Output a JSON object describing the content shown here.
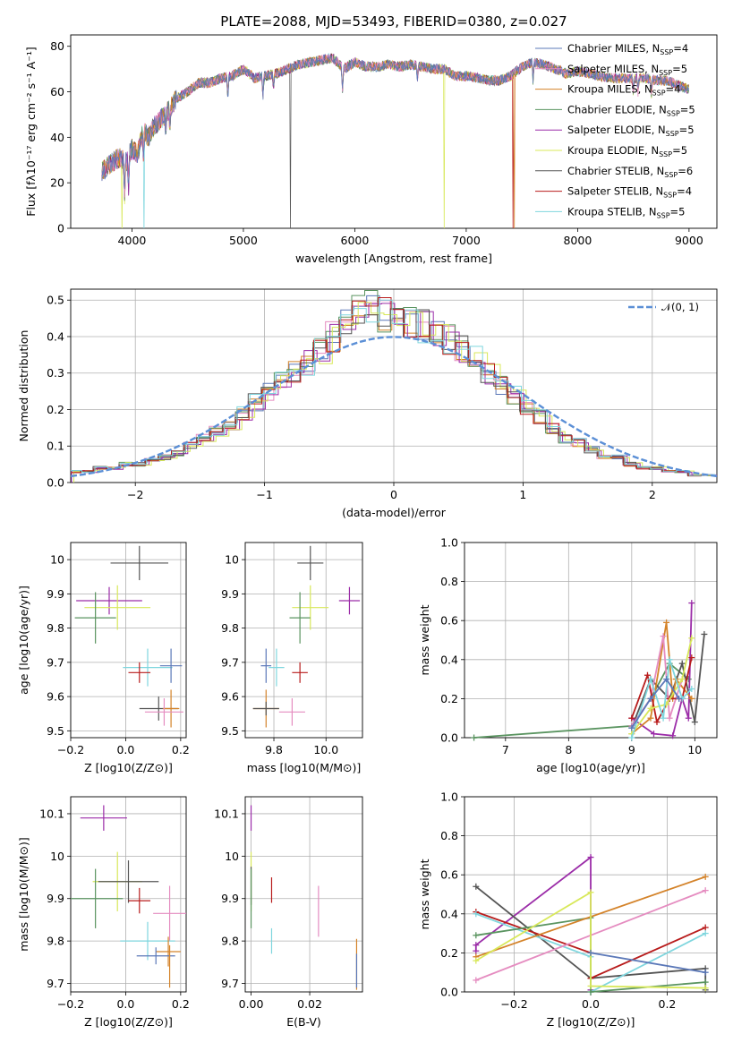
{
  "figure_title": "PLATE=2088, MJD=53493, FIBERID=0380, z=0.027",
  "colors": {
    "Chabrier MILES": "#5b78b8",
    "Salpeter MILES": "#e58cc0",
    "Kroupa MILES": "#d4832a",
    "Chabrier ELODIE": "#5a9460",
    "Salpeter ELODIE": "#9b2ca8",
    "Kroupa ELODIE": "#d8e85a",
    "Chabrier STELIB": "#555555",
    "Salpeter STELIB": "#b81c1c",
    "Kroupa STELIB": "#7fd6de",
    "normal_curve": "#5b8fd6"
  },
  "models": [
    "Chabrier MILES",
    "Salpeter MILES",
    "Kroupa MILES",
    "Chabrier ELODIE",
    "Salpeter ELODIE",
    "Kroupa ELODIE",
    "Chabrier STELIB",
    "Salpeter STELIB",
    "Kroupa STELIB"
  ],
  "legend_spectrum": [
    {
      "model": "Chabrier MILES",
      "text": "Chabrier MILES, N",
      "n": "4"
    },
    {
      "model": "Salpeter MILES",
      "text": "Salpeter MILES, N",
      "n": "5"
    },
    {
      "model": "Kroupa MILES",
      "text": "Kroupa MILES, N",
      "n": "4"
    },
    {
      "model": "Chabrier ELODIE",
      "text": "Chabrier ELODIE, N",
      "n": "5"
    },
    {
      "model": "Salpeter ELODIE",
      "text": "Salpeter ELODIE, N",
      "n": "5"
    },
    {
      "model": "Kroupa ELODIE",
      "text": "Kroupa ELODIE, N",
      "n": "5"
    },
    {
      "model": "Chabrier STELIB",
      "text": "Chabrier STELIB, N",
      "n": "6"
    },
    {
      "model": "Salpeter STELIB",
      "text": "Salpeter STELIB, N",
      "n": "4"
    },
    {
      "model": "Kroupa STELIB",
      "text": "Kroupa STELIB, N",
      "n": "5"
    }
  ],
  "legend_ssp_sub": "SSP",
  "legend_normal": "𝒩(0, 1)",
  "chart_data": [
    {
      "id": "spectrum",
      "type": "line",
      "xlabel": "wavelength [Angstrom, rest frame]",
      "ylabel": "Flux [fλ10⁻¹⁷ erg cm⁻² s⁻¹ A⁻¹]",
      "xlim": [
        3450,
        9250
      ],
      "ylim": [
        0,
        85
      ],
      "xticks": [
        4000,
        5000,
        6000,
        7000,
        8000,
        9000
      ],
      "yticks": [
        0,
        20,
        40,
        60,
        80
      ],
      "x": [
        3730,
        3800,
        3850,
        3900,
        3950,
        4000,
        4050,
        4100,
        4150,
        4200,
        4300,
        4400,
        4500,
        4600,
        4700,
        4800,
        4900,
        5000,
        5100,
        5200,
        5300,
        5400,
        5500,
        5600,
        5700,
        5800,
        5900,
        6000,
        6100,
        6200,
        6300,
        6400,
        6500,
        6600,
        6700,
        6800,
        6900,
        7000,
        7100,
        7200,
        7300,
        7400,
        7500,
        7600,
        7700,
        7800,
        7900,
        8000,
        8100,
        8200,
        8300,
        8400,
        8500,
        8600,
        8700,
        8800,
        8900,
        9000
      ],
      "y": [
        25,
        28,
        30,
        31,
        29,
        35,
        33,
        43,
        40,
        45,
        50,
        57,
        60,
        64,
        64,
        66,
        67,
        70,
        66,
        67,
        68,
        70,
        72,
        73,
        74,
        75,
        70,
        73,
        71,
        71,
        72,
        71,
        72,
        71,
        70,
        70,
        67,
        67,
        66,
        65,
        65,
        67,
        71,
        73,
        72,
        70,
        68,
        69,
        68,
        67,
        66,
        66,
        66,
        66,
        65,
        65,
        63,
        61
      ],
      "dropouts": [
        {
          "model": "Kroupa ELODIE",
          "x": 3910
        },
        {
          "model": "Kroupa STELIB",
          "x": 4110
        },
        {
          "model": "Chabrier STELIB",
          "x": 5420
        },
        {
          "model": "Kroupa ELODIE",
          "x": 6800
        },
        {
          "model": "Kroupa MILES",
          "x": 7430
        },
        {
          "model": "Salpeter STELIB",
          "x": 7420
        }
      ]
    },
    {
      "id": "residuals",
      "type": "histogram",
      "xlabel": "(data-model)/error",
      "ylabel": "Normed distribution",
      "xlim": [
        -2.5,
        2.5
      ],
      "ylim": [
        0,
        0.53
      ],
      "xticks": [
        -2,
        -1,
        0,
        1,
        2
      ],
      "yticks": [
        0.0,
        0.1,
        0.2,
        0.3,
        0.4,
        0.5
      ],
      "xtick_labels": [
        "−2",
        "−1",
        "0",
        "1",
        "2"
      ],
      "yticks_labels": [
        "0.0",
        "0.1",
        "0.2",
        "0.3",
        "0.4",
        "0.5"
      ],
      "bin_width": 0.1,
      "bin_start": -2.5,
      "mean_density": [
        0.03,
        0.03,
        0.04,
        0.04,
        0.05,
        0.05,
        0.06,
        0.07,
        0.08,
        0.1,
        0.12,
        0.14,
        0.16,
        0.19,
        0.22,
        0.25,
        0.28,
        0.3,
        0.33,
        0.36,
        0.4,
        0.44,
        0.47,
        0.48,
        0.46,
        0.47,
        0.44,
        0.43,
        0.42,
        0.39,
        0.37,
        0.34,
        0.3,
        0.27,
        0.24,
        0.21,
        0.18,
        0.15,
        0.12,
        0.11,
        0.09,
        0.07,
        0.07,
        0.05,
        0.04,
        0.04,
        0.03,
        0.03,
        0.02,
        0.02
      ],
      "normal": {
        "label": "N(0,1)",
        "mean": 0,
        "sigma": 1
      }
    },
    {
      "id": "age_vs_Z",
      "type": "scatter_errorbar",
      "xlabel": "Z [log10(Z/Z⊙)]",
      "ylabel": "age  [log10(age/yr)]",
      "xlim": [
        -0.2,
        0.22
      ],
      "ylim": [
        9.48,
        10.05
      ],
      "xticks": [
        -0.2,
        0.0,
        0.2
      ],
      "xtick_labels": [
        "−0.2",
        "0.0",
        "0.2"
      ],
      "yticks": [
        9.5,
        9.6,
        9.7,
        9.8,
        9.9,
        10.0
      ],
      "points": [
        {
          "model": "Chabrier STELIB",
          "x": 0.05,
          "y": 9.99,
          "xerr": 0.105,
          "yerr": 0.05
        },
        {
          "model": "Salpeter ELODIE",
          "x": -0.06,
          "y": 9.88,
          "xerr": 0.12,
          "yerr": 0.04
        },
        {
          "model": "Kroupa ELODIE",
          "x": -0.03,
          "y": 9.86,
          "xerr": 0.12,
          "yerr": 0.065
        },
        {
          "model": "Chabrier ELODIE",
          "x": -0.11,
          "y": 9.83,
          "xerr": 0.075,
          "yerr": 0.075
        },
        {
          "model": "Kroupa STELIB",
          "x": 0.08,
          "y": 9.685,
          "xerr": 0.09,
          "yerr": 0.055
        },
        {
          "model": "Chabrier MILES",
          "x": 0.165,
          "y": 9.69,
          "xerr": 0.04,
          "yerr": 0.05
        },
        {
          "model": "Salpeter STELIB",
          "x": 0.05,
          "y": 9.67,
          "xerr": 0.04,
          "yerr": 0.03
        },
        {
          "model": "Chabrier STELIB",
          "x": 0.12,
          "y": 9.565,
          "xerr": 0.07,
          "yerr": 0.035
        },
        {
          "model": "Kroupa MILES",
          "x": 0.165,
          "y": 9.565,
          "xerr": 0.03,
          "yerr": 0.055
        },
        {
          "model": "Salpeter MILES",
          "x": 0.14,
          "y": 9.555,
          "xerr": 0.07,
          "yerr": 0.04
        }
      ]
    },
    {
      "id": "age_vs_mass",
      "type": "scatter_errorbar",
      "xlabel": "mass [log10(M/M⊙)]",
      "ylabel": "",
      "xlim": [
        9.69,
        10.14
      ],
      "ylim": [
        9.48,
        10.05
      ],
      "xticks": [
        9.8,
        10.0
      ],
      "xtick_labels": [
        "9.8",
        "10.0"
      ],
      "yticks": [
        9.5,
        9.6,
        9.7,
        9.8,
        9.9,
        10.0
      ],
      "points": [
        {
          "model": "Chabrier STELIB",
          "x": 9.94,
          "y": 9.99,
          "xerr": 0.05,
          "yerr": 0.05
        },
        {
          "model": "Salpeter ELODIE",
          "x": 10.09,
          "y": 9.88,
          "xerr": 0.04,
          "yerr": 0.04
        },
        {
          "model": "Kroupa ELODIE",
          "x": 9.94,
          "y": 9.86,
          "xerr": 0.07,
          "yerr": 0.065
        },
        {
          "model": "Chabrier ELODIE",
          "x": 9.9,
          "y": 9.83,
          "xerr": 0.04,
          "yerr": 0.075
        },
        {
          "model": "Kroupa STELIB",
          "x": 9.81,
          "y": 9.685,
          "xerr": 0.03,
          "yerr": 0.055
        },
        {
          "model": "Chabrier MILES",
          "x": 9.77,
          "y": 9.69,
          "xerr": 0.02,
          "yerr": 0.05
        },
        {
          "model": "Salpeter STELIB",
          "x": 9.9,
          "y": 9.67,
          "xerr": 0.03,
          "yerr": 0.03
        },
        {
          "model": "Kroupa MILES",
          "x": 9.77,
          "y": 9.565,
          "xerr": 0.05,
          "yerr": 0.055
        },
        {
          "model": "Salpeter MILES",
          "x": 9.87,
          "y": 9.555,
          "xerr": 0.05,
          "yerr": 0.04
        },
        {
          "model": "Chabrier STELIB",
          "x": 9.77,
          "y": 9.565,
          "xerr": 0.05,
          "yerr": 0.02
        }
      ]
    },
    {
      "id": "weight_vs_age",
      "type": "line",
      "xlabel": "age  [log10(age/yr)]",
      "ylabel": "mass weight",
      "xlim": [
        6.35,
        10.35
      ],
      "ylim": [
        0,
        1.0
      ],
      "xticks": [
        7,
        8,
        9,
        10
      ],
      "xtick_labels": [
        "7",
        "8",
        "9",
        "10"
      ],
      "yticks": [
        0.0,
        0.2,
        0.4,
        0.6,
        0.8,
        1.0
      ],
      "series": [
        {
          "model": "Chabrier ELODIE",
          "x": [
            6.5,
            9.0,
            9.3,
            9.6,
            9.9
          ],
          "y": [
            0.0,
            0.06,
            0.2,
            0.38,
            0.3
          ]
        },
        {
          "model": "Chabrier STELIB",
          "x": [
            9.0,
            9.3,
            9.6,
            9.8,
            10.0,
            10.15
          ],
          "y": [
            0.05,
            0.3,
            0.2,
            0.38,
            0.08,
            0.53
          ]
        },
        {
          "model": "Salpeter ELODIE",
          "x": [
            9.0,
            9.35,
            9.65,
            9.8,
            9.9,
            9.95
          ],
          "y": [
            0.1,
            0.02,
            0.01,
            0.2,
            0.1,
            0.69
          ]
        },
        {
          "model": "Kroupa MILES",
          "x": [
            9.0,
            9.3,
            9.55,
            9.65,
            9.7,
            9.95
          ],
          "y": [
            0.02,
            0.1,
            0.59,
            0.2,
            0.3,
            0.2
          ]
        },
        {
          "model": "Salpeter MILES",
          "x": [
            9.0,
            9.3,
            9.5,
            9.6,
            9.8
          ],
          "y": [
            0.06,
            0.2,
            0.52,
            0.1,
            0.3
          ]
        },
        {
          "model": "Salpeter STELIB",
          "x": [
            9.0,
            9.25,
            9.4,
            9.6,
            9.8,
            9.95
          ],
          "y": [
            0.1,
            0.32,
            0.08,
            0.2,
            0.2,
            0.41
          ]
        },
        {
          "model": "Kroupa ELODIE",
          "x": [
            9.0,
            9.3,
            9.55,
            9.8,
            9.95
          ],
          "y": [
            0.02,
            0.15,
            0.17,
            0.3,
            0.51
          ]
        },
        {
          "model": "Kroupa STELIB",
          "x": [
            9.0,
            9.3,
            9.5,
            9.6,
            9.8,
            9.95
          ],
          "y": [
            0.0,
            0.3,
            0.1,
            0.4,
            0.2,
            0.25
          ]
        },
        {
          "model": "Chabrier MILES",
          "x": [
            9.0,
            9.3,
            9.55,
            9.75
          ],
          "y": [
            0.05,
            0.2,
            0.3,
            0.2
          ]
        }
      ]
    },
    {
      "id": "mass_vs_Z",
      "type": "scatter_errorbar",
      "xlabel": "Z [log10(Z/Z⊙)]",
      "ylabel": "mass [log10(M/M⊙)]",
      "xlim": [
        -0.2,
        0.22
      ],
      "ylim": [
        9.68,
        10.14
      ],
      "xticks": [
        -0.2,
        0.0,
        0.2
      ],
      "xtick_labels": [
        "−0.2",
        "0.0",
        "0.2"
      ],
      "yticks": [
        9.7,
        9.8,
        9.9,
        10.0,
        10.1
      ],
      "points": [
        {
          "model": "Salpeter ELODIE",
          "x": -0.08,
          "y": 10.09,
          "xerr": 0.085,
          "yerr": 0.03
        },
        {
          "model": "Kroupa ELODIE",
          "x": -0.03,
          "y": 9.94,
          "xerr": 0.09,
          "yerr": 0.07
        },
        {
          "model": "Chabrier STELIB",
          "x": 0.01,
          "y": 9.94,
          "xerr": 0.11,
          "yerr": 0.05
        },
        {
          "model": "Chabrier ELODIE",
          "x": -0.11,
          "y": 9.9,
          "xerr": 0.1,
          "yerr": 0.07
        },
        {
          "model": "Salpeter STELIB",
          "x": 0.05,
          "y": 9.895,
          "xerr": 0.04,
          "yerr": 0.03
        },
        {
          "model": "Salpeter MILES",
          "x": 0.16,
          "y": 9.865,
          "xerr": 0.06,
          "yerr": 0.065
        },
        {
          "model": "Kroupa STELIB",
          "x": 0.08,
          "y": 9.8,
          "xerr": 0.1,
          "yerr": 0.045
        },
        {
          "model": "Kroupa MILES",
          "x": 0.155,
          "y": 9.775,
          "xerr": 0.045,
          "yerr": 0.035
        },
        {
          "model": "Chabrier MILES",
          "x": 0.11,
          "y": 9.765,
          "xerr": 0.07,
          "yerr": 0.02
        },
        {
          "model": "Kroupa MILES",
          "x": 0.16,
          "y": 9.74,
          "xerr": 0.0,
          "yerr": 0.05
        }
      ]
    },
    {
      "id": "mass_vs_ebv",
      "type": "errorbar",
      "xlabel": "E(B-V)",
      "ylabel": "",
      "xlim": [
        -0.002,
        0.038
      ],
      "ylim": [
        9.68,
        10.14
      ],
      "xticks": [
        0.0,
        0.02
      ],
      "xtick_labels": [
        "0.00",
        "0.02"
      ],
      "yticks": [
        9.7,
        9.8,
        9.9,
        10.0,
        10.1
      ],
      "points": [
        {
          "model": "Salpeter ELODIE",
          "x": 0.0,
          "y": 10.09,
          "yerr": 0.03
        },
        {
          "model": "Kroupa ELODIE",
          "x": 0.0,
          "y": 9.94,
          "yerr": 0.07
        },
        {
          "model": "Chabrier STELIB",
          "x": 0.0,
          "y": 9.93,
          "yerr": 0.045
        },
        {
          "model": "Chabrier ELODIE",
          "x": 0.0,
          "y": 9.9,
          "yerr": 0.07
        },
        {
          "model": "Salpeter STELIB",
          "x": 0.007,
          "y": 9.92,
          "yerr": 0.03
        },
        {
          "model": "Kroupa STELIB",
          "x": 0.007,
          "y": 9.8,
          "yerr": 0.03
        },
        {
          "model": "Salpeter MILES",
          "x": 0.023,
          "y": 9.87,
          "yerr": 0.06
        },
        {
          "model": "Kroupa MILES",
          "x": 0.036,
          "y": 9.745,
          "yerr": 0.06
        },
        {
          "model": "Chabrier MILES",
          "x": 0.036,
          "y": 9.73,
          "yerr": 0.04
        }
      ]
    },
    {
      "id": "weight_vs_Z",
      "type": "line",
      "xlabel": "Z [log10(Z/Z⊙)]",
      "ylabel": "mass weight",
      "xlim": [
        -0.33,
        0.33
      ],
      "ylim": [
        0,
        1.0
      ],
      "xticks": [
        -0.2,
        0.0,
        0.2
      ],
      "xtick_labels": [
        "−0.2",
        "0.0",
        "0.2"
      ],
      "yticks": [
        0.0,
        0.2,
        0.4,
        0.6,
        0.8,
        1.0
      ],
      "series": [
        {
          "model": "Salpeter ELODIE",
          "x": [
            -0.3,
            -0.3,
            0.0,
            0.0
          ],
          "y": [
            0.21,
            0.24,
            0.69,
            0.01
          ]
        },
        {
          "model": "Chabrier STELIB",
          "x": [
            -0.3,
            0.0,
            0.3,
            0.3
          ],
          "y": [
            0.54,
            0.07,
            0.12,
            0.01
          ]
        },
        {
          "model": "Salpeter STELIB",
          "x": [
            -0.3,
            0.0,
            0.0,
            0.3
          ],
          "y": [
            0.41,
            0.2,
            0.07,
            0.33
          ]
        },
        {
          "model": "Kroupa STELIB",
          "x": [
            -0.3,
            0.0,
            0.0,
            0.3
          ],
          "y": [
            0.4,
            0.18,
            0.0,
            0.3
          ]
        },
        {
          "model": "Chabrier ELODIE",
          "x": [
            -0.3,
            0.0,
            0.0,
            0.3
          ],
          "y": [
            0.29,
            0.38,
            0.0,
            0.05
          ]
        },
        {
          "model": "Kroupa MILES",
          "x": [
            -0.3,
            0.3
          ],
          "y": [
            0.18,
            0.59
          ]
        },
        {
          "model": "Salpeter MILES",
          "x": [
            -0.3,
            0.3
          ],
          "y": [
            0.06,
            0.52
          ]
        },
        {
          "model": "Kroupa ELODIE",
          "x": [
            -0.3,
            0.0,
            0.0,
            0.3
          ],
          "y": [
            0.16,
            0.51,
            0.03,
            0.02
          ]
        },
        {
          "model": "Chabrier MILES",
          "x": [
            0.0,
            0.3
          ],
          "y": [
            0.2,
            0.1
          ]
        }
      ]
    }
  ]
}
